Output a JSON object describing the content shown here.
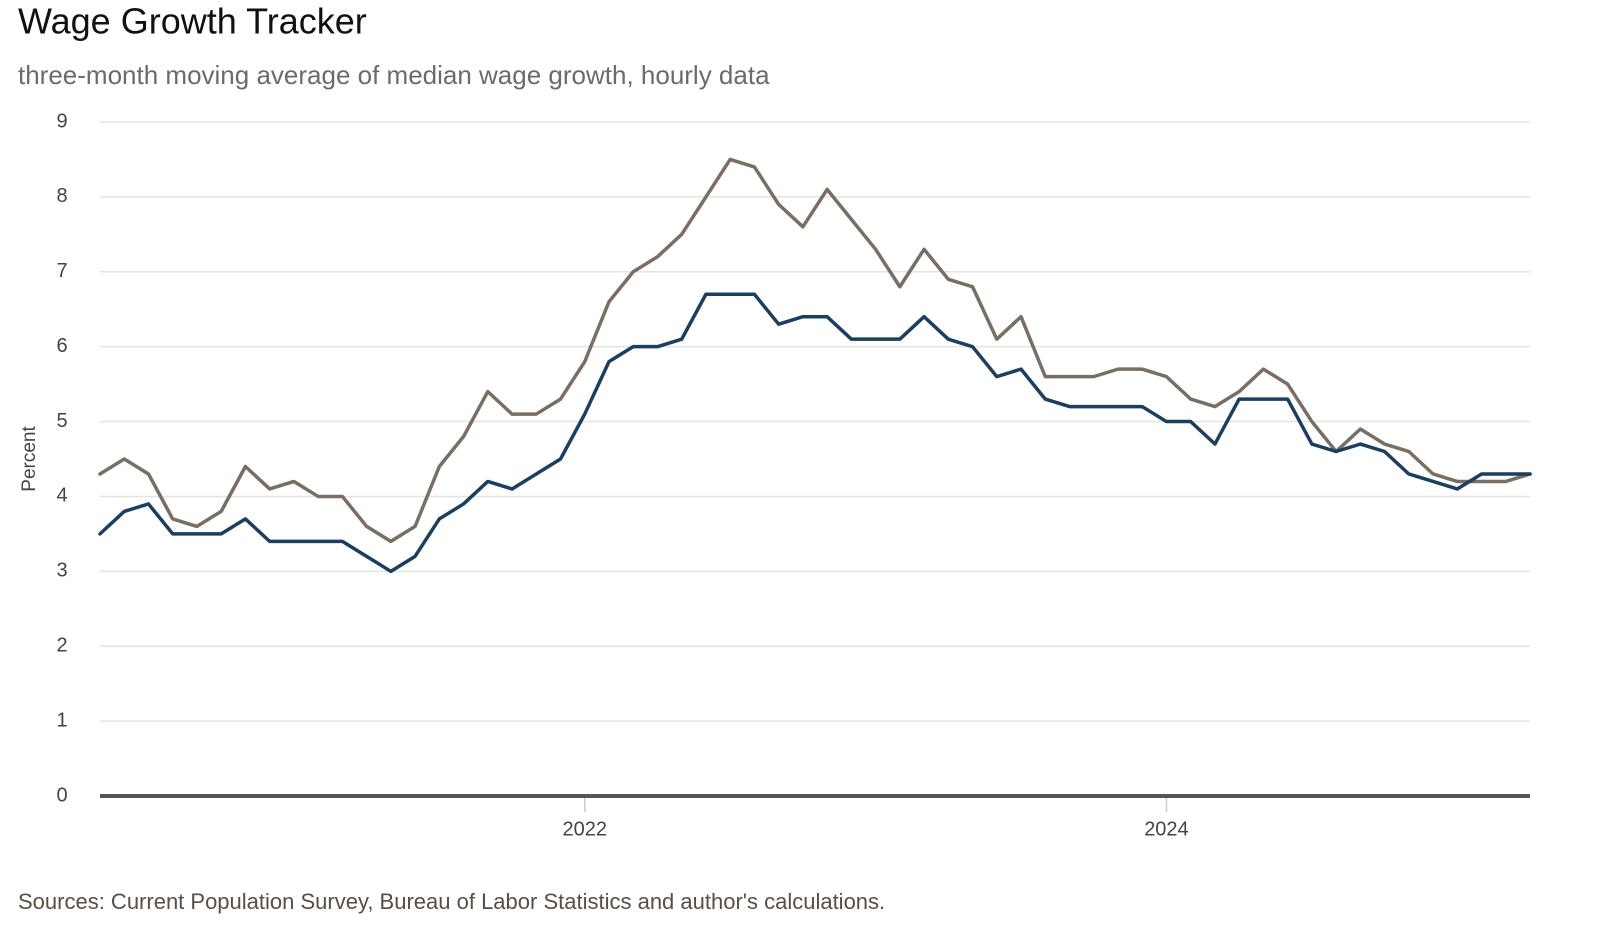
{
  "chart_data": {
    "type": "line",
    "title": "Wage Growth Tracker",
    "subtitle": "three-month moving average of median wage growth, hourly data",
    "y_label": "Percent",
    "source": "Sources: Current Population Survey, Bureau of Labor Statistics and author's calculations.",
    "categories": [
      null,
      null,
      null,
      null,
      null,
      null,
      null,
      null,
      null,
      null,
      null,
      null,
      null,
      null,
      null,
      null,
      null,
      null,
      null,
      null,
      "2022",
      null,
      null,
      null,
      null,
      null,
      null,
      null,
      null,
      null,
      null,
      null,
      null,
      null,
      null,
      null,
      null,
      null,
      null,
      null,
      null,
      null,
      null,
      null,
      "2024",
      null,
      null,
      null,
      null,
      null,
      null,
      null,
      null,
      null,
      null,
      null,
      null,
      null,
      null,
      null
    ],
    "series": [
      {
        "color": "#7a6e62",
        "values": [
          4.3,
          4.5,
          4.3,
          3.7,
          3.6,
          3.8,
          4.4,
          4.1,
          4.2,
          4.0,
          4.0,
          3.6,
          3.4,
          3.6,
          4.4,
          4.8,
          5.4,
          5.1,
          5.1,
          5.3,
          5.8,
          6.6,
          7.0,
          7.2,
          7.5,
          8.0,
          8.5,
          8.4,
          7.9,
          7.6,
          8.1,
          7.7,
          7.3,
          6.8,
          7.3,
          6.9,
          6.8,
          6.1,
          6.4,
          5.6,
          5.6,
          5.6,
          5.7,
          5.7,
          5.6,
          5.3,
          5.2,
          5.4,
          5.7,
          5.5,
          5.0,
          4.6,
          4.9,
          4.7,
          4.6,
          4.3,
          4.2,
          4.2,
          4.2,
          4.3
        ]
      },
      {
        "color": "#1c3f5f",
        "values": [
          3.5,
          3.8,
          3.9,
          3.5,
          3.5,
          3.5,
          3.7,
          3.4,
          3.4,
          3.4,
          3.4,
          3.2,
          3.0,
          3.2,
          3.7,
          3.9,
          4.2,
          4.1,
          4.3,
          4.5,
          5.1,
          5.8,
          6.0,
          6.0,
          6.1,
          6.7,
          6.7,
          6.7,
          6.3,
          6.4,
          6.4,
          6.1,
          6.1,
          6.1,
          6.4,
          6.1,
          6.0,
          5.6,
          5.7,
          5.3,
          5.2,
          5.2,
          5.2,
          5.2,
          5.0,
          5.0,
          4.7,
          5.3,
          5.3,
          5.3,
          4.7,
          4.6,
          4.7,
          4.6,
          4.3,
          4.2,
          4.1,
          4.3,
          4.3,
          4.3
        ]
      }
    ],
    "ylim": [
      0,
      9
    ],
    "yticks": [
      0,
      1,
      2,
      3,
      4,
      5,
      6,
      7,
      8,
      9
    ],
    "grid": true
  }
}
